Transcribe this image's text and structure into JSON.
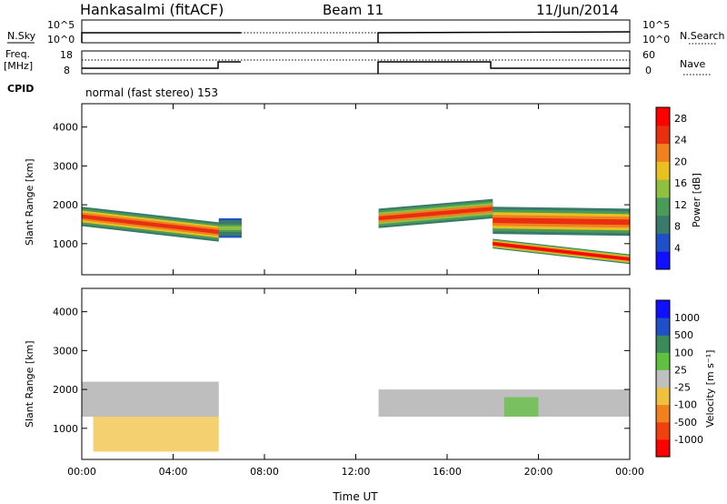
{
  "header": {
    "station": "Hankasalmi (fitACF)",
    "beam": "Beam 11",
    "date": "11/Jun/2014"
  },
  "strip_labels": {
    "nsky": "N.Sky",
    "nsearch": "N.Search",
    "freq_line1": "Freq.",
    "freq_line2": "[MHz]",
    "nave": "Nave",
    "cpid": "CPID",
    "cpid_mode": "normal (fast stereo) 153"
  },
  "noise_axis": {
    "ticks_left": [
      "10^5",
      "10^0"
    ],
    "ticks_right": [
      "10^5",
      "10^0"
    ]
  },
  "freq_axis": {
    "ticks_left": [
      "18",
      "8"
    ],
    "ticks_right": [
      "60",
      "0"
    ]
  },
  "colors": {
    "frame": "#000000",
    "gap_fill": "#ffffff",
    "ground_scatter": "#bebebe",
    "power_scale": [
      "#1010ff",
      "#2050c8",
      "#3a7a6a",
      "#4a9a5a",
      "#90c040",
      "#e8c020",
      "#f08020",
      "#e83010",
      "#ff0000"
    ],
    "velocity_scale": [
      "#ff0000",
      "#f04010",
      "#f08020",
      "#f0c040",
      "#c0c0c0",
      "#60c040",
      "#3a8a5a",
      "#2050c8",
      "#1010ff"
    ]
  },
  "chart_data": [
    {
      "type": "heatmap",
      "title": "Power",
      "ylabel": "Slant Range [km]",
      "xlabel": "Time UT",
      "x_ticks": [
        "00:00",
        "04:00",
        "08:00",
        "12:00",
        "16:00",
        "20:00",
        "00:00"
      ],
      "y_ticks": [
        "1000",
        "2000",
        "3000",
        "4000"
      ],
      "ylim": [
        200,
        4600
      ],
      "x_range_hours": [
        0,
        24
      ],
      "colorbar": {
        "label": "Power [dB]",
        "ticks": [
          "4",
          "8",
          "12",
          "16",
          "20",
          "24",
          "28"
        ],
        "range": [
          0,
          30
        ]
      },
      "data_gap_hours": [
        7,
        13
      ],
      "echo_bands": [
        {
          "start_hour": 0.0,
          "end_hour": 6.0,
          "center_km_start": 1700,
          "center_km_end": 1300,
          "width_km": 500,
          "peak_db": 26
        },
        {
          "start_hour": 6.0,
          "end_hour": 7.0,
          "center_km_start": 1400,
          "center_km_end": 1400,
          "width_km": 500,
          "peak_db": 14
        },
        {
          "start_hour": 13.0,
          "end_hour": 18.0,
          "center_km_start": 1650,
          "center_km_end": 1900,
          "width_km": 500,
          "peak_db": 24
        },
        {
          "start_hour": 18.0,
          "end_hour": 24.0,
          "center_km_start": 1600,
          "center_km_end": 1550,
          "width_km": 700,
          "peak_db": 26
        },
        {
          "start_hour": 18.0,
          "end_hour": 24.0,
          "center_km_start": 1000,
          "center_km_end": 600,
          "width_km": 250,
          "peak_db": 28
        }
      ]
    },
    {
      "type": "heatmap",
      "title": "Velocity",
      "ylabel": "Slant Range [km]",
      "xlabel": "Time UT",
      "x_ticks": [
        "00:00",
        "04:00",
        "08:00",
        "12:00",
        "16:00",
        "20:00",
        "00:00"
      ],
      "y_ticks": [
        "1000",
        "2000",
        "3000",
        "4000"
      ],
      "ylim": [
        200,
        4600
      ],
      "x_range_hours": [
        0,
        24
      ],
      "colorbar": {
        "label": "Velocity [m s⁻¹]",
        "ticks": [
          "1000",
          "500",
          "100",
          "25",
          "-25",
          "-100",
          "-500",
          "-1000"
        ]
      },
      "data_gap_hours": [
        7,
        13
      ],
      "regions": [
        {
          "start_hour": 0.0,
          "end_hour": 6.0,
          "range_km": [
            1300,
            2200
          ],
          "class": "ground_scatter"
        },
        {
          "start_hour": 13.0,
          "end_hour": 24.0,
          "range_km": [
            1300,
            2000
          ],
          "class": "ground_scatter"
        },
        {
          "start_hour": 18.5,
          "end_hour": 20.0,
          "range_km": [
            1300,
            1800
          ],
          "class": "positive_100"
        },
        {
          "start_hour": 0.5,
          "end_hour": 6.0,
          "range_km": [
            400,
            1300
          ],
          "class": "negative_100"
        }
      ]
    }
  ],
  "axis": {
    "xlabel": "Time UT",
    "x_ticks": [
      "00:00",
      "04:00",
      "08:00",
      "12:00",
      "16:00",
      "20:00",
      "00:00"
    ]
  }
}
